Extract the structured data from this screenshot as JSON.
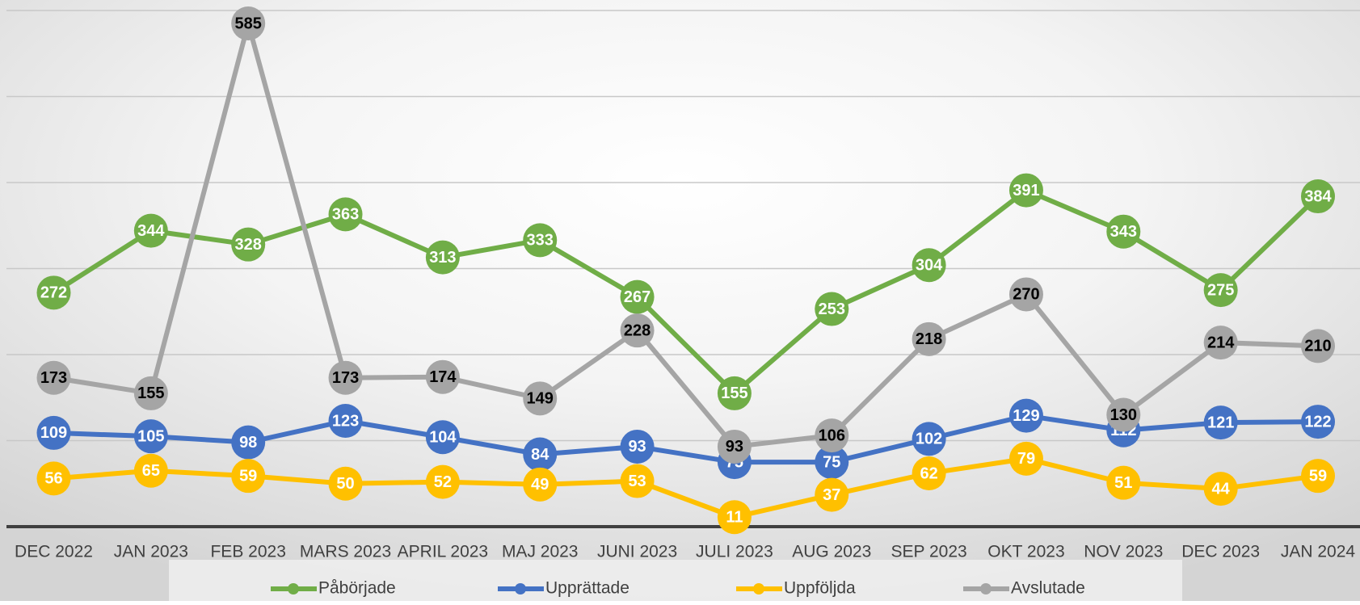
{
  "chart_data": {
    "type": "line",
    "categories": [
      "DEC 2022",
      "JAN 2023",
      "FEB 2023",
      "MARS 2023",
      "APRIL 2023",
      "MAJ 2023",
      "JUNI 2023",
      "JULI 2023",
      "AUG 2023",
      "SEP 2023",
      "OKT 2023",
      "NOV 2023",
      "DEC 2023",
      "JAN 2024"
    ],
    "series": [
      {
        "name": "Påbörjade",
        "color": "#70ad47",
        "values": [
          272,
          344,
          328,
          363,
          313,
          333,
          267,
          155,
          253,
          304,
          391,
          343,
          275,
          384
        ]
      },
      {
        "name": "Upprättade",
        "color": "#4472c4",
        "values": [
          109,
          105,
          98,
          123,
          104,
          84,
          93,
          75,
          75,
          102,
          129,
          112,
          121,
          122
        ]
      },
      {
        "name": "Uppföljda",
        "color": "#ffc000",
        "values": [
          56,
          65,
          59,
          50,
          52,
          49,
          53,
          11,
          37,
          62,
          79,
          51,
          44,
          59
        ]
      },
      {
        "name": "Avslutade",
        "color": "#a5a5a5",
        "values": [
          173,
          155,
          585,
          173,
          174,
          149,
          228,
          93,
          106,
          218,
          270,
          130,
          214,
          210
        ]
      }
    ],
    "ylim": [
      0,
      600
    ],
    "yticks": [
      0,
      100,
      200,
      300,
      400,
      500,
      600
    ],
    "grid": true,
    "legend": "bottom"
  }
}
